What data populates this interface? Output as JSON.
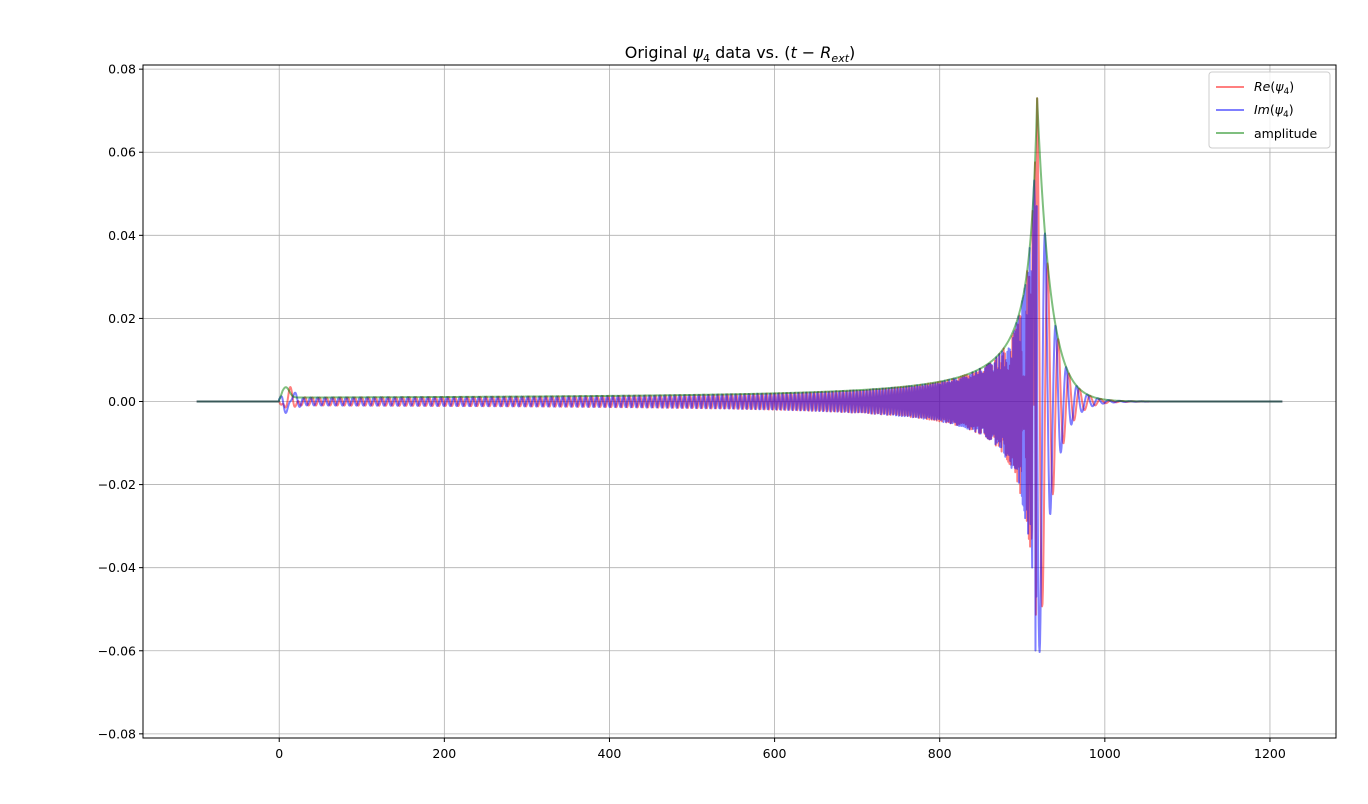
{
  "chart_data": {
    "type": "line",
    "title": {
      "main": "Original ",
      "psi": "ψ",
      "psi_sub": "4",
      "middle": " data vs. (",
      "t": "t",
      "minus": " − ",
      "R": "R",
      "R_sub": "ext",
      "close": ")"
    },
    "xlabel": "",
    "ylabel": "",
    "xlim": [
      -165,
      1280
    ],
    "ylim": [
      -0.081,
      0.081
    ],
    "xticks": [
      0,
      200,
      400,
      600,
      800,
      1000,
      1200
    ],
    "xtick_labels": [
      "0",
      "200",
      "400",
      "600",
      "800",
      "1000",
      "1200"
    ],
    "yticks": [
      -0.08,
      -0.06,
      -0.04,
      -0.02,
      0.0,
      0.02,
      0.04,
      0.06,
      0.08
    ],
    "ytick_labels": [
      "−0.08",
      "−0.06",
      "−0.04",
      "−0.02",
      "0.00",
      "0.02",
      "0.04",
      "0.06",
      "0.08"
    ],
    "grid": true,
    "legend_position": "top-right",
    "x_range": [
      -100,
      1215
    ],
    "series": [
      {
        "key": "re",
        "legend_prefix": "Re",
        "legend_psi": "ψ",
        "legend_sub": "4",
        "color": "#ff0000",
        "opacity": 0.5,
        "amplitude_peak": 0.071,
        "amplitude_peak_x": 918,
        "phase_offset": 0.0
      },
      {
        "key": "im",
        "legend_prefix": "Im",
        "legend_psi": "ψ",
        "legend_sub": "4",
        "color": "#0000ff",
        "opacity": 0.5,
        "amplitude_peak": 0.073,
        "amplitude_peak_x": 918,
        "phase_offset": 1.5708
      },
      {
        "key": "amp",
        "legend_label": "amplitude",
        "color": "#008000",
        "opacity": 0.5,
        "amplitude_peak": 0.073,
        "amplitude_peak_x": 918
      }
    ]
  }
}
